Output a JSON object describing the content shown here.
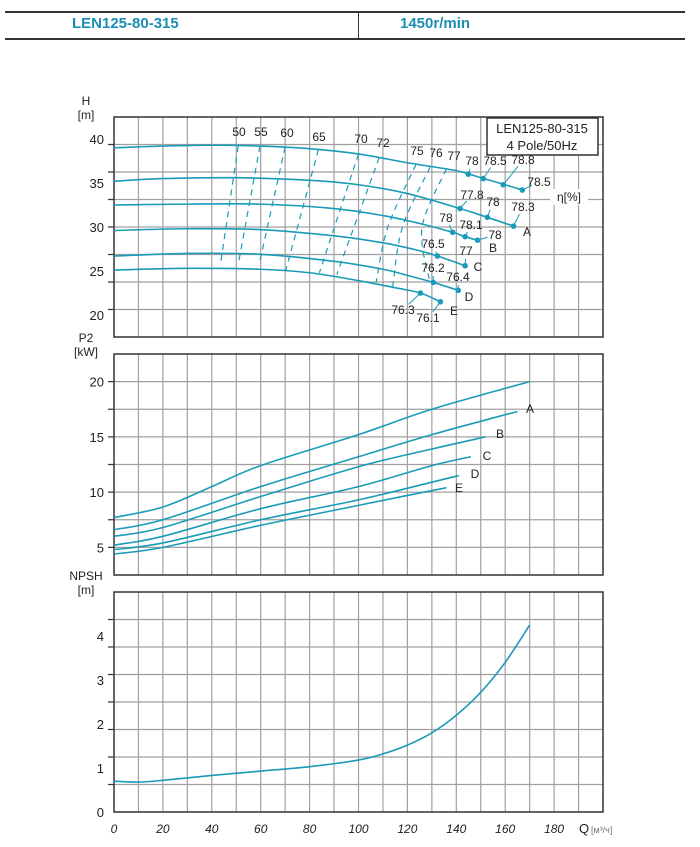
{
  "header": {
    "model": "LEN125-80-315",
    "speed": "1450r/min"
  },
  "colors": {
    "curve": "#1a9bb8",
    "grid": "#a0a0a0",
    "axis": "#333333",
    "header_text": "#1b8fb3"
  },
  "chart_data": [
    {
      "type": "line",
      "title": "H",
      "ylabel": "H",
      "yunit": "[m]",
      "xlim": [
        0,
        200
      ],
      "ylim": [
        17.5,
        42.5
      ],
      "yticks": [
        "20",
        "25",
        "30",
        "35",
        "40"
      ],
      "grid": true,
      "legend_box": {
        "line1": "LEN125-80-315",
        "line2": "4 Pole/50Hz"
      },
      "eta_label": "η[%]",
      "series": [
        {
          "name": "",
          "points": [
            [
              0,
              39.0
            ],
            [
              20,
              39.2
            ],
            [
              40,
              39.3
            ],
            [
              60,
              39.2
            ],
            [
              80,
              38.9
            ],
            [
              100,
              38.3
            ],
            [
              120,
              37.3
            ],
            [
              140,
              36.4
            ],
            [
              150,
              35.6
            ],
            [
              160,
              34.8
            ],
            [
              167,
              34.2
            ]
          ],
          "marks": [
            {
              "q": 144.9,
              "h": 36.0,
              "label": "78"
            },
            {
              "q": 151,
              "h": 35.5,
              "label": "78.5"
            },
            {
              "q": 159.2,
              "h": 34.8,
              "label": "78.8"
            },
            {
              "q": 167,
              "h": 34.2,
              "label": "78.5"
            }
          ]
        },
        {
          "name": "A",
          "points": [
            [
              0,
              35.2
            ],
            [
              20,
              35.5
            ],
            [
              50,
              35.6
            ],
            [
              80,
              35.3
            ],
            [
              100,
              34.8
            ],
            [
              120,
              33.8
            ],
            [
              141.5,
              32.1
            ],
            [
              152.7,
              31.1
            ],
            [
              163.4,
              30.1
            ]
          ],
          "marks": [
            {
              "q": 141.5,
              "h": 32.1,
              "label": "77.8"
            },
            {
              "q": 152.7,
              "h": 31.1,
              "label": "78"
            },
            {
              "q": 163.4,
              "h": 30.1,
              "label": "78.3"
            }
          ]
        },
        {
          "name": "B",
          "points": [
            [
              0,
              32.5
            ],
            [
              30,
              32.6
            ],
            [
              60,
              32.6
            ],
            [
              90,
              32.1
            ],
            [
              110,
              31.3
            ],
            [
              125,
              30.4
            ],
            [
              138.5,
              29.4
            ],
            [
              143.6,
              28.9
            ],
            [
              148.7,
              28.5
            ]
          ],
          "marks": [
            {
              "q": 138.5,
              "h": 29.4,
              "label": "78"
            },
            {
              "q": 143.6,
              "h": 28.9,
              "label": "78.1"
            },
            {
              "q": 148.7,
              "h": 28.5,
              "label": "78"
            }
          ]
        },
        {
          "name": "C",
          "points": [
            [
              0,
              29.6
            ],
            [
              30,
              29.8
            ],
            [
              60,
              29.7
            ],
            [
              90,
              29.0
            ],
            [
              110,
              28.2
            ],
            [
              125,
              27.3
            ],
            [
              132.3,
              26.7
            ],
            [
              143.6,
              25.6
            ]
          ],
          "marks": [
            {
              "q": 132.3,
              "h": 26.7,
              "label": "76.5"
            },
            {
              "q": 143.6,
              "h": 25.6,
              "label": "77"
            }
          ]
        },
        {
          "name": "D",
          "points": [
            [
              0,
              26.7
            ],
            [
              30,
              27.0
            ],
            [
              60,
              26.9
            ],
            [
              90,
              26.1
            ],
            [
              110,
              25.2
            ],
            [
              120,
              24.5
            ],
            [
              130.6,
              23.7
            ],
            [
              140.8,
              22.8
            ]
          ],
          "marks": [
            {
              "q": 130.6,
              "h": 23.7,
              "label": "76.2"
            },
            {
              "q": 140.8,
              "h": 22.8,
              "label": "76.4"
            }
          ]
        },
        {
          "name": "E",
          "points": [
            [
              0,
              25.1
            ],
            [
              30,
              25.3
            ],
            [
              60,
              25.2
            ],
            [
              80,
              24.8
            ],
            [
              100,
              23.9
            ],
            [
              115,
              23.1
            ],
            [
              125.3,
              22.5
            ],
            [
              133.5,
              21.5
            ]
          ],
          "marks": [
            {
              "q": 125.3,
              "h": 22.5,
              "label": "76.3"
            },
            {
              "q": 133.5,
              "h": 21.5,
              "label": "76.1"
            }
          ]
        }
      ],
      "iso_efficiency": [
        {
          "label": "50",
          "points": [
            [
              50.8,
              39.2
            ],
            [
              43.6,
              25.9
            ]
          ]
        },
        {
          "label": "55",
          "points": [
            [
              59.7,
              39.2
            ],
            [
              50.9,
              25.9
            ]
          ]
        },
        {
          "label": "60",
          "points": [
            [
              70,
              39.1
            ],
            [
              59.4,
              25.8
            ]
          ]
        },
        {
          "label": "65",
          "points": [
            [
              83.6,
              38.8
            ],
            [
              70.3,
              25.1
            ]
          ]
        },
        {
          "label": "70",
          "points": [
            [
              100,
              38.3
            ],
            [
              84,
              24.8
            ]
          ]
        },
        {
          "label": "72",
          "points": [
            [
              108.5,
              37.9
            ],
            [
              91.1,
              24.6
            ]
          ]
        },
        {
          "label": "75",
          "points": [
            [
              123.5,
              37.1
            ],
            [
              112,
              30
            ],
            [
              107.2,
              23.7
            ]
          ]
        },
        {
          "label": "76",
          "points": [
            [
              129.3,
              36.8
            ],
            [
              118,
              30
            ],
            [
              114,
              23.2
            ]
          ]
        },
        {
          "label": "77",
          "points": [
            [
              136,
              36.6
            ],
            [
              126,
              30
            ],
            [
              129,
              23.9
            ]
          ]
        }
      ]
    },
    {
      "type": "line",
      "title": "P2",
      "ylabel": "P2",
      "yunit": "[kW]",
      "xlim": [
        0,
        200
      ],
      "ylim": [
        2.5,
        22.5
      ],
      "yticks": [
        "5",
        "10",
        "15",
        "20"
      ],
      "grid": true,
      "series": [
        {
          "name": "",
          "points": [
            [
              0,
              7.7
            ],
            [
              20,
              8.65
            ],
            [
              40,
              10.5
            ],
            [
              60,
              12.4
            ],
            [
              100,
              15.2
            ],
            [
              130,
              17.5
            ],
            [
              170,
              20.0
            ]
          ]
        },
        {
          "name": "A",
          "points": [
            [
              0,
              6.6
            ],
            [
              20,
              7.5
            ],
            [
              60,
              10.5
            ],
            [
              100,
              13.2
            ],
            [
              130,
              15.2
            ],
            [
              165,
              17.3
            ]
          ]
        },
        {
          "name": "B",
          "points": [
            [
              0,
              6.0
            ],
            [
              20,
              6.8
            ],
            [
              60,
              9.6
            ],
            [
              100,
              12.3
            ],
            [
              130,
              13.9
            ],
            [
              152,
              15.0
            ]
          ]
        },
        {
          "name": "C",
          "points": [
            [
              0,
              5.2
            ],
            [
              20,
              6.0
            ],
            [
              60,
              8.5
            ],
            [
              100,
              10.5
            ],
            [
              130,
              12.4
            ],
            [
              146,
              13.2
            ]
          ]
        },
        {
          "name": "D",
          "points": [
            [
              0,
              4.8
            ],
            [
              20,
              5.4
            ],
            [
              60,
              7.5
            ],
            [
              100,
              9.3
            ],
            [
              130,
              10.9
            ],
            [
              141,
              11.5
            ]
          ]
        },
        {
          "name": "E",
          "points": [
            [
              0,
              4.4
            ],
            [
              20,
              5.0
            ],
            [
              60,
              7.0
            ],
            [
              100,
              8.8
            ],
            [
              120,
              9.7
            ],
            [
              136,
              10.4
            ]
          ]
        }
      ]
    },
    {
      "type": "line",
      "title": "NPSH",
      "ylabel": "NPSH",
      "yunit": "[m]",
      "xlabel": "Q",
      "xunit": "[м³/ч]",
      "xlim": [
        0,
        200
      ],
      "ylim": [
        0,
        5
      ],
      "xticks": [
        "0",
        "20",
        "40",
        "60",
        "80",
        "100",
        "120",
        "140",
        "160",
        "180"
      ],
      "yticks": [
        "0",
        "1",
        "2",
        "3",
        "4"
      ],
      "grid": true,
      "series": [
        {
          "name": "NPSH",
          "points": [
            [
              0,
              0.7
            ],
            [
              10,
              0.68
            ],
            [
              20,
              0.72
            ],
            [
              40,
              0.83
            ],
            [
              60,
              0.93
            ],
            [
              80,
              1.03
            ],
            [
              100,
              1.18
            ],
            [
              110,
              1.32
            ],
            [
              120,
              1.52
            ],
            [
              130,
              1.8
            ],
            [
              140,
              2.2
            ],
            [
              150,
              2.72
            ],
            [
              160,
              3.4
            ],
            [
              170,
              4.25
            ]
          ]
        }
      ]
    }
  ]
}
